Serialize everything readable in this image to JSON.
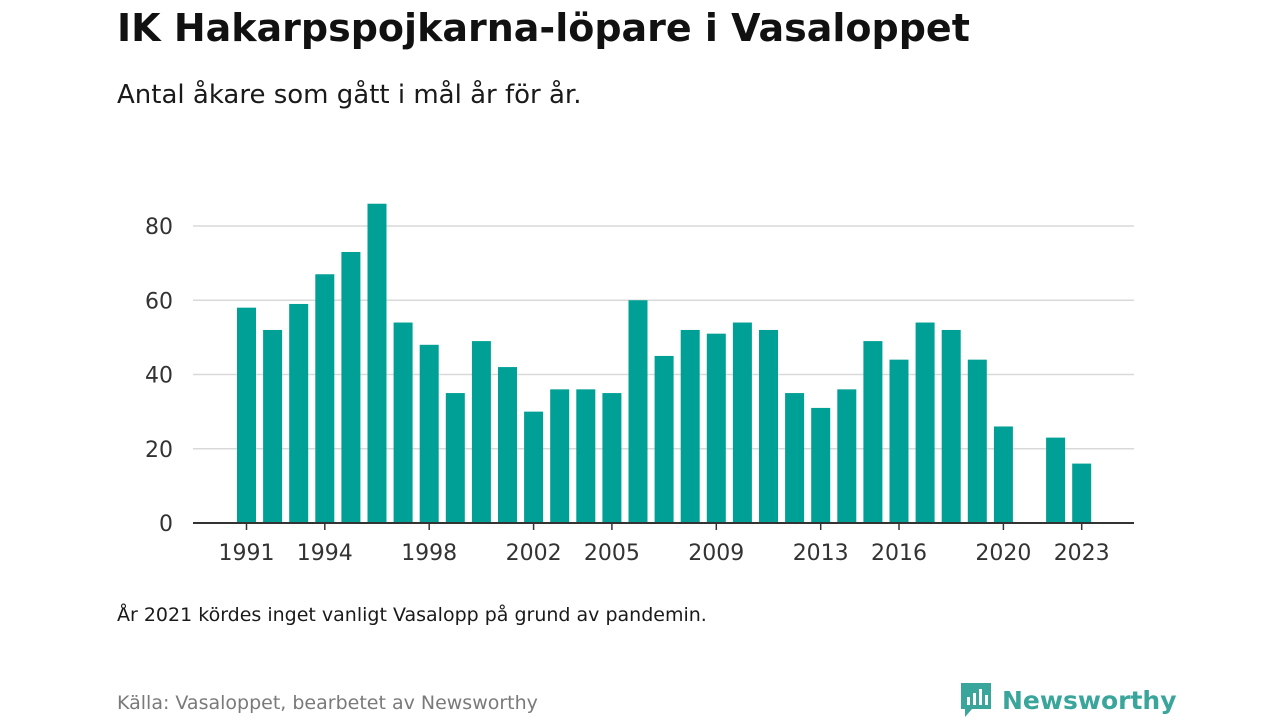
{
  "title": "IK Hakarpspojkarna-löpare i Vasaloppet",
  "subtitle": "Antal åkare som gått i mål år för år.",
  "note": "År 2021 kördes inget vanligt Vasalopp på grund av pandemin.",
  "source": "Källa: Vasaloppet, bearbetet av Newsworthy",
  "brand": {
    "name": "Newsworthy",
    "icon": "newsworthy-logo-icon"
  },
  "colors": {
    "bar": "#00a096",
    "grid": "#d9d9d9",
    "axis": "#333333",
    "brand": "#3aa59b"
  },
  "chart_data": {
    "type": "bar",
    "x": [
      1991,
      1992,
      1993,
      1994,
      1995,
      1996,
      1997,
      1998,
      1999,
      2000,
      2001,
      2002,
      2003,
      2004,
      2005,
      2006,
      2007,
      2008,
      2009,
      2010,
      2011,
      2012,
      2013,
      2014,
      2015,
      2016,
      2017,
      2018,
      2019,
      2020,
      2021,
      2022,
      2023
    ],
    "values": [
      58,
      52,
      59,
      67,
      73,
      86,
      54,
      48,
      35,
      49,
      42,
      30,
      36,
      36,
      35,
      60,
      45,
      52,
      51,
      54,
      52,
      35,
      31,
      36,
      49,
      44,
      54,
      52,
      44,
      26,
      null,
      23,
      16
    ],
    "x_tick_labels": [
      "1991",
      "1994",
      "1998",
      "2002",
      "2005",
      "2009",
      "2013",
      "2016",
      "2020",
      "2023"
    ],
    "y_ticks": [
      0,
      20,
      40,
      60,
      80
    ],
    "ylim": [
      0,
      86
    ],
    "grid": true,
    "legend": "none"
  }
}
